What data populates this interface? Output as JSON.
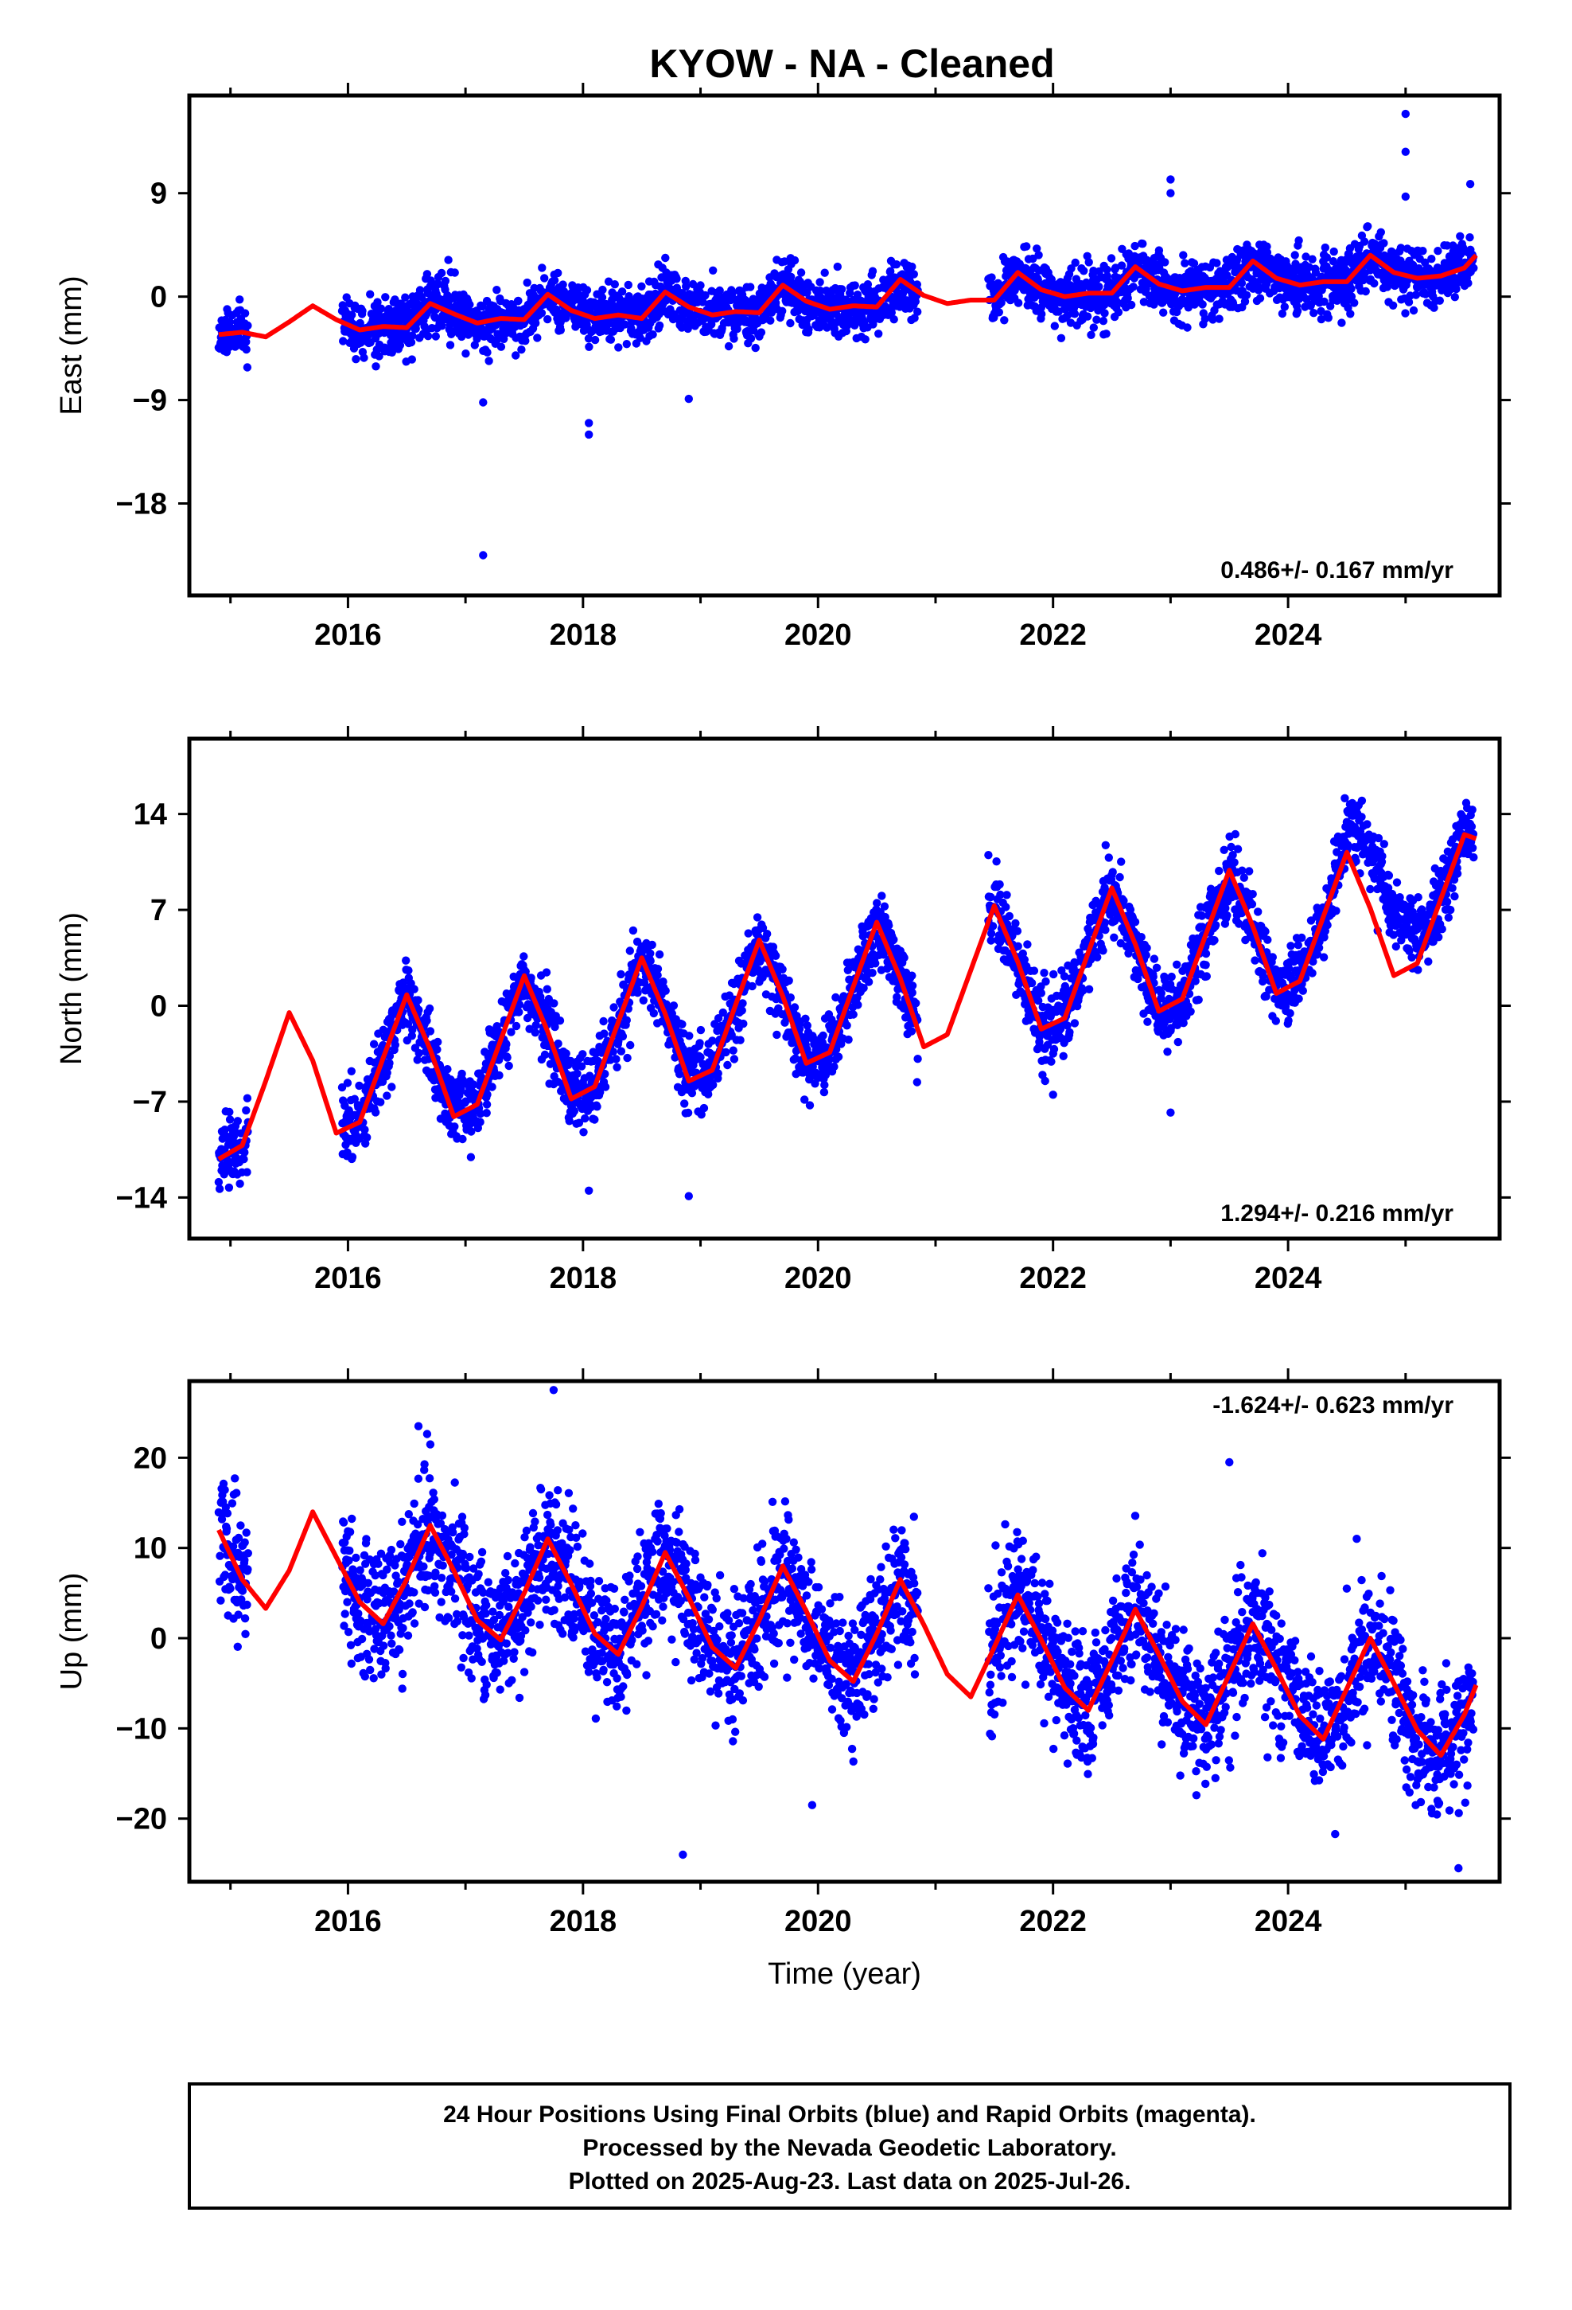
{
  "title": "KYOW  - NA - Cleaned",
  "colors": {
    "points": "#0000ff",
    "model": "#ff0000",
    "frame": "#000000"
  },
  "footer": {
    "lines": [
      "24 Hour Positions Using Final Orbits (blue) and Rapid Orbits (magenta).",
      "Processed by the Nevada Geodetic Laboratory.",
      "Plotted on 2025-Aug-23. Last data on 2025-Jul-26."
    ]
  },
  "chart_data": [
    {
      "type": "scatter",
      "ylabel": "East (mm)",
      "xlabel": "",
      "xlim": [
        2014.65,
        2025.8
      ],
      "ylim": [
        -26,
        17.5
      ],
      "xticks": [
        "2016",
        "2018",
        "2020",
        "2022",
        "2024"
      ],
      "yticks": [
        "9",
        "0",
        "-9",
        "-18"
      ],
      "rate_text": "0.486+/- 0.167 mm/yr",
      "rate_position": "bottom-right",
      "model": {
        "name": "",
        "curve": [
          [
            2014.9,
            -3.3
          ],
          [
            2015.1,
            -3.1
          ],
          [
            2015.3,
            -3.5
          ],
          [
            2015.5,
            -2.2
          ],
          [
            2015.7,
            -0.8
          ],
          [
            2015.9,
            -2.0
          ],
          [
            2016.1,
            -2.9
          ],
          [
            2016.3,
            -2.6
          ],
          [
            2016.5,
            -2.7
          ],
          [
            2016.7,
            -0.6
          ],
          [
            2016.9,
            -1.5
          ],
          [
            2017.1,
            -2.3
          ],
          [
            2017.3,
            -1.9
          ],
          [
            2017.5,
            -2.0
          ],
          [
            2017.7,
            0.2
          ],
          [
            2017.9,
            -1.2
          ],
          [
            2018.1,
            -1.9
          ],
          [
            2018.3,
            -1.6
          ],
          [
            2018.5,
            -1.9
          ],
          [
            2018.7,
            0.4
          ],
          [
            2018.9,
            -0.9
          ],
          [
            2019.1,
            -1.6
          ],
          [
            2019.3,
            -1.3
          ],
          [
            2019.5,
            -1.4
          ],
          [
            2019.7,
            1.0
          ],
          [
            2019.9,
            -0.4
          ],
          [
            2020.1,
            -1.1
          ],
          [
            2020.3,
            -0.8
          ],
          [
            2020.5,
            -0.9
          ],
          [
            2020.7,
            1.5
          ],
          [
            2020.9,
            0.1
          ],
          [
            2021.1,
            -0.6
          ],
          [
            2021.3,
            -0.3
          ],
          [
            2021.5,
            -0.3
          ],
          [
            2021.7,
            2.1
          ],
          [
            2021.9,
            0.6
          ],
          [
            2022.1,
            0.0
          ],
          [
            2022.3,
            0.3
          ],
          [
            2022.5,
            0.3
          ],
          [
            2022.7,
            2.6
          ],
          [
            2022.9,
            1.1
          ],
          [
            2023.1,
            0.5
          ],
          [
            2023.3,
            0.8
          ],
          [
            2023.5,
            0.8
          ],
          [
            2023.7,
            3.1
          ],
          [
            2023.9,
            1.6
          ],
          [
            2024.1,
            1.0
          ],
          [
            2024.3,
            1.3
          ],
          [
            2024.5,
            1.3
          ],
          [
            2024.7,
            3.6
          ],
          [
            2024.9,
            2.1
          ],
          [
            2025.1,
            1.6
          ],
          [
            2025.3,
            1.8
          ],
          [
            2025.5,
            2.5
          ],
          [
            2025.6,
            3.6
          ]
        ]
      },
      "points_model": {
        "amp_annual": 1.3,
        "phase_peak": 0.7,
        "std": 1.2,
        "segments": [
          [
            2014.9,
            2015.15
          ],
          [
            2015.95,
            2020.85
          ],
          [
            2021.45,
            2025.58
          ]
        ],
        "outliers": [
          [
            2017.15,
            -22.5
          ],
          [
            2017.15,
            -9.2
          ],
          [
            2018.05,
            -11.0
          ],
          [
            2018.05,
            -12.0
          ],
          [
            2018.9,
            -8.9
          ],
          [
            2023.0,
            9.0
          ],
          [
            2023.0,
            10.2
          ],
          [
            2025.0,
            12.6
          ],
          [
            2025.0,
            15.9
          ],
          [
            2025.0,
            8.7
          ],
          [
            2025.55,
            9.8
          ]
        ]
      },
      "seed": 11
    },
    {
      "type": "scatter",
      "ylabel": "North (mm)",
      "xlabel": "",
      "xlim": [
        2014.65,
        2025.8
      ],
      "ylim": [
        -17,
        19.5
      ],
      "xticks": [
        "2016",
        "2018",
        "2020",
        "2022",
        "2024"
      ],
      "yticks": [
        "14",
        "7",
        "0",
        "-7",
        "-14"
      ],
      "rate_text": "1.294+/- 0.216 mm/yr",
      "rate_position": "bottom-right",
      "model": {
        "name": "",
        "curve": [
          [
            2014.9,
            -11.2
          ],
          [
            2015.1,
            -10.2
          ],
          [
            2015.3,
            -5.5
          ],
          [
            2015.5,
            -0.5
          ],
          [
            2015.7,
            -4.0
          ],
          [
            2015.9,
            -9.3
          ],
          [
            2016.1,
            -8.5
          ],
          [
            2016.3,
            -3.8
          ],
          [
            2016.5,
            0.8
          ],
          [
            2016.7,
            -3.2
          ],
          [
            2016.9,
            -8.1
          ],
          [
            2017.1,
            -7.2
          ],
          [
            2017.3,
            -2.5
          ],
          [
            2017.5,
            2.2
          ],
          [
            2017.7,
            -1.9
          ],
          [
            2017.9,
            -6.8
          ],
          [
            2018.1,
            -5.9
          ],
          [
            2018.3,
            -1.2
          ],
          [
            2018.5,
            3.5
          ],
          [
            2018.7,
            -0.6
          ],
          [
            2018.9,
            -5.5
          ],
          [
            2019.1,
            -4.7
          ],
          [
            2019.3,
            0.1
          ],
          [
            2019.5,
            4.8
          ],
          [
            2019.7,
            0.7
          ],
          [
            2019.9,
            -4.2
          ],
          [
            2020.1,
            -3.4
          ],
          [
            2020.3,
            1.4
          ],
          [
            2020.5,
            6.1
          ],
          [
            2020.7,
            2.0
          ],
          [
            2020.9,
            -3.0
          ],
          [
            2021.1,
            -2.1
          ],
          [
            2021.3,
            2.6
          ],
          [
            2021.5,
            7.3
          ],
          [
            2021.7,
            3.2
          ],
          [
            2021.9,
            -1.7
          ],
          [
            2022.1,
            -0.9
          ],
          [
            2022.3,
            3.9
          ],
          [
            2022.5,
            8.6
          ],
          [
            2022.7,
            4.5
          ],
          [
            2022.9,
            -0.4
          ],
          [
            2023.1,
            0.5
          ],
          [
            2023.3,
            5.2
          ],
          [
            2023.5,
            9.9
          ],
          [
            2023.7,
            5.8
          ],
          [
            2023.9,
            0.9
          ],
          [
            2024.1,
            1.8
          ],
          [
            2024.3,
            6.5
          ],
          [
            2024.5,
            11.2
          ],
          [
            2024.7,
            7.1
          ],
          [
            2024.9,
            2.2
          ],
          [
            2025.1,
            3.1
          ],
          [
            2025.3,
            7.8
          ],
          [
            2025.5,
            12.5
          ],
          [
            2025.6,
            12.2
          ]
        ]
      },
      "points_model": {
        "amp_annual": 5.0,
        "phase_peak": 0.5,
        "std": 1.3,
        "segments": [
          [
            2014.9,
            2015.15
          ],
          [
            2015.95,
            2020.85
          ],
          [
            2021.45,
            2025.58
          ]
        ],
        "shift": [
          [
            2024.35,
            2025.6,
            5.0
          ]
        ],
        "outliers": [
          [
            2021.45,
            11.0
          ],
          [
            2018.05,
            -13.5
          ],
          [
            2018.9,
            -13.9
          ],
          [
            2023.0,
            -7.8
          ],
          [
            2022.0,
            -6.5
          ]
        ]
      },
      "seed": 23
    },
    {
      "type": "scatter",
      "ylabel": "Up (mm)",
      "xlabel": "Time (year)",
      "xlim": [
        2014.65,
        2025.8
      ],
      "ylim": [
        -27,
        28.5
      ],
      "xticks": [
        "2016",
        "2018",
        "2020",
        "2022",
        "2024"
      ],
      "yticks": [
        "20",
        "10",
        "0",
        "-10",
        "-20"
      ],
      "rate_text": "-1.624+/- 0.623 mm/yr",
      "rate_position": "top-right",
      "model": {
        "name": "",
        "curve": [
          [
            2014.9,
            12.0
          ],
          [
            2015.1,
            6.5
          ],
          [
            2015.3,
            3.3
          ],
          [
            2015.5,
            7.5
          ],
          [
            2015.7,
            14.0
          ],
          [
            2015.9,
            9.0
          ],
          [
            2016.1,
            4.0
          ],
          [
            2016.3,
            1.6
          ],
          [
            2016.5,
            6.5
          ],
          [
            2016.7,
            12.5
          ],
          [
            2016.9,
            7.5
          ],
          [
            2017.1,
            2.0
          ],
          [
            2017.3,
            -0.2
          ],
          [
            2017.5,
            5.0
          ],
          [
            2017.7,
            11.0
          ],
          [
            2017.9,
            6.0
          ],
          [
            2018.1,
            0.5
          ],
          [
            2018.3,
            -1.8
          ],
          [
            2018.5,
            3.5
          ],
          [
            2018.7,
            9.5
          ],
          [
            2018.9,
            4.5
          ],
          [
            2019.1,
            -1.0
          ],
          [
            2019.3,
            -3.3
          ],
          [
            2019.5,
            2.0
          ],
          [
            2019.7,
            8.0
          ],
          [
            2019.9,
            3.0
          ],
          [
            2020.1,
            -2.5
          ],
          [
            2020.3,
            -4.8
          ],
          [
            2020.5,
            0.5
          ],
          [
            2020.7,
            6.5
          ],
          [
            2020.9,
            1.5
          ],
          [
            2021.1,
            -4.0
          ],
          [
            2021.3,
            -6.5
          ],
          [
            2021.5,
            -1.0
          ],
          [
            2021.7,
            4.8
          ],
          [
            2021.9,
            -0.2
          ],
          [
            2022.1,
            -5.5
          ],
          [
            2022.3,
            -8.0
          ],
          [
            2022.5,
            -2.5
          ],
          [
            2022.7,
            3.2
          ],
          [
            2022.9,
            -1.8
          ],
          [
            2023.1,
            -7.0
          ],
          [
            2023.3,
            -9.6
          ],
          [
            2023.5,
            -4.0
          ],
          [
            2023.7,
            1.6
          ],
          [
            2023.9,
            -3.4
          ],
          [
            2024.1,
            -8.6
          ],
          [
            2024.3,
            -11.2
          ],
          [
            2024.5,
            -5.6
          ],
          [
            2024.7,
            0.0
          ],
          [
            2024.9,
            -5.0
          ],
          [
            2025.1,
            -10.2
          ],
          [
            2025.3,
            -13.0
          ],
          [
            2025.5,
            -8.5
          ],
          [
            2025.6,
            -5.2
          ]
        ]
      },
      "points_model": {
        "amp_annual": 6.0,
        "phase_peak": 0.75,
        "std": 3.6,
        "segments": [
          [
            2014.9,
            2015.15
          ],
          [
            2015.95,
            2020.85
          ],
          [
            2021.45,
            2025.58
          ]
        ],
        "outliers": [
          [
            2017.75,
            27.5
          ],
          [
            2016.6,
            23.5
          ],
          [
            2018.85,
            -24.0
          ],
          [
            2023.5,
            19.5
          ],
          [
            2019.95,
            -18.5
          ],
          [
            2025.45,
            -25.5
          ]
        ]
      },
      "seed": 37
    }
  ]
}
